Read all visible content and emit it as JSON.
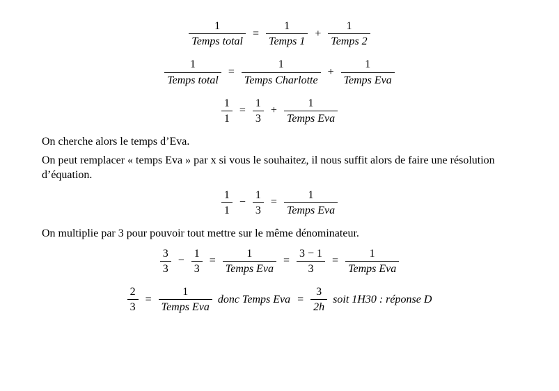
{
  "eq1": {
    "lhs_num": "1",
    "lhs_den": "Temps total",
    "r1_num": "1",
    "r1_den": "Temps 1",
    "plus": "+",
    "r2_num": "1",
    "r2_den": "Temps 2",
    "eq": "="
  },
  "eq2": {
    "lhs_num": "1",
    "lhs_den": "Temps total",
    "r1_num": "1",
    "r1_den": "Temps Charlotte",
    "plus": "+",
    "r2_num": "1",
    "r2_den": "Temps Eva",
    "eq": "="
  },
  "eq3": {
    "lhs_num": "1",
    "lhs_den": "1",
    "r1_num": "1",
    "r1_den": "3",
    "plus": "+",
    "r2_num": "1",
    "r2_den": "Temps Eva",
    "eq": "="
  },
  "para1": "On cherche alors le temps d’Eva.",
  "para2": "On peut remplacer « temps Eva » par x si vous le souhaitez, il nous suffit alors de faire une résolution d’équation.",
  "eq4": {
    "l1_num": "1",
    "l1_den": "1",
    "minus": "−",
    "l2_num": "1",
    "l2_den": "3",
    "eq": "=",
    "r_num": "1",
    "r_den": "Temps Eva"
  },
  "para3": "On multiplie par 3 pour pouvoir tout mettre sur le même dénominateur.",
  "eq5": {
    "a_num": "3",
    "a_den": "3",
    "minus": "−",
    "b_num": "1",
    "b_den": "3",
    "eq1": "=",
    "c_num": "1",
    "c_den": "Temps Eva",
    "eq2": "=",
    "d_num": "3 − 1",
    "d_den": "3",
    "eq3": "=",
    "e_num": "1",
    "e_den": "Temps Eva"
  },
  "eq6": {
    "a_num": "2",
    "a_den": "3",
    "eq1": "=",
    "b_num": "1",
    "b_den": "Temps Eva",
    "txt1": " donc Temps Eva ",
    "eq2": "=",
    "c_num": "3",
    "c_den": "2h",
    "txt2": "soit 1H30 : réponse D"
  }
}
